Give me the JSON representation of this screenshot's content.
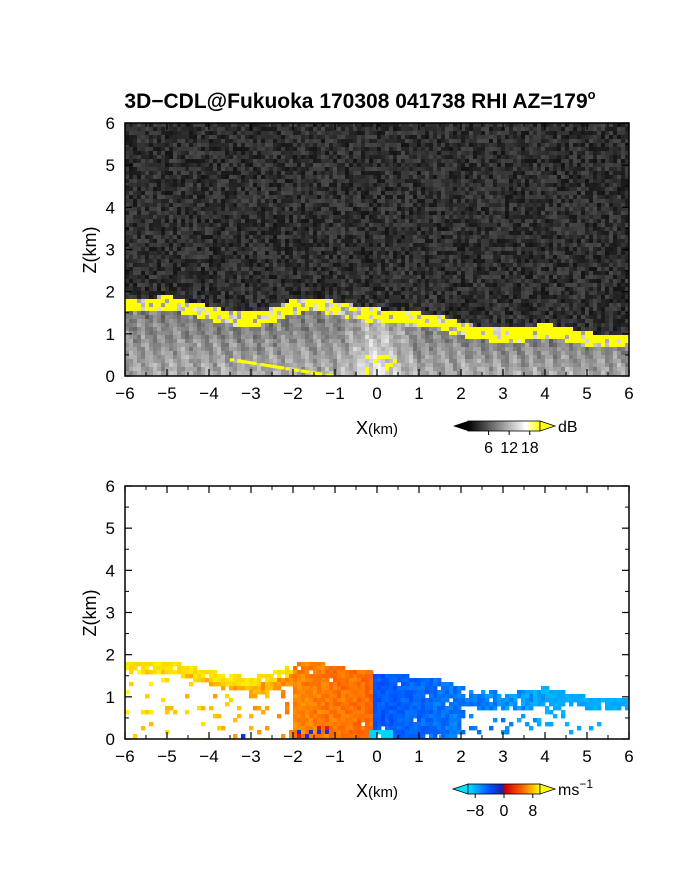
{
  "title": "3D−CDL@Fukuoka 170308 041738 RHI AZ=179",
  "title_sup": "o",
  "chart_data": [
    {
      "type": "heatmap",
      "quantity": "backscatter intensity",
      "xlabel_main": "X",
      "xlabel_unit": "(km)",
      "ylabel": "Z(km)",
      "xlim": [
        -6,
        6
      ],
      "ylim": [
        0,
        6
      ],
      "x_ticks": [
        "−6",
        "−5",
        "−4",
        "−3",
        "−2",
        "−1",
        "0",
        "1",
        "2",
        "3",
        "4",
        "5",
        "6"
      ],
      "y_ticks": [
        "0",
        "1",
        "2",
        "3",
        "4",
        "5",
        "6"
      ],
      "boundary_top_km": {
        "x": [
          -6,
          -5.5,
          -5,
          -4.5,
          -4,
          -3.5,
          -3,
          -2.5,
          -2,
          -1.5,
          -1,
          -0.5,
          0,
          0.5,
          1,
          1.5,
          2,
          2.5,
          3,
          3.5,
          4,
          4.5,
          5,
          5.5,
          6
        ],
        "z": [
          1.8,
          1.8,
          1.85,
          1.72,
          1.6,
          1.5,
          1.45,
          1.55,
          1.75,
          1.82,
          1.72,
          1.62,
          1.55,
          1.5,
          1.45,
          1.38,
          1.22,
          1.12,
          1.08,
          1.1,
          1.2,
          1.1,
          0.98,
          0.95,
          0.92
        ]
      },
      "colorbar": {
        "label": "dB",
        "ticks": [
          "6",
          "12",
          "18"
        ],
        "range": [
          0,
          21
        ],
        "colors": [
          "#000000",
          "#ffffff",
          "#ffff00"
        ]
      }
    },
    {
      "type": "heatmap",
      "quantity": "Doppler velocity",
      "xlabel_main": "X",
      "xlabel_unit": "(km)",
      "ylabel": "Z(km)",
      "xlim": [
        -6,
        6
      ],
      "ylim": [
        0,
        6
      ],
      "x_ticks": [
        "−6",
        "−5",
        "−4",
        "−3",
        "−2",
        "−1",
        "0",
        "1",
        "2",
        "3",
        "4",
        "5",
        "6"
      ],
      "y_ticks": [
        "0",
        "1",
        "2",
        "3",
        "4",
        "5",
        "6"
      ],
      "colorbar": {
        "label": "ms",
        "label_sup": "−1",
        "ticks": [
          "−8",
          "0",
          "8"
        ],
        "range": [
          -10,
          10
        ],
        "colors": [
          "#00e0ff",
          "#0050ff",
          "#2020a0",
          "#d00000",
          "#ff6000",
          "#ffff00"
        ]
      }
    }
  ]
}
